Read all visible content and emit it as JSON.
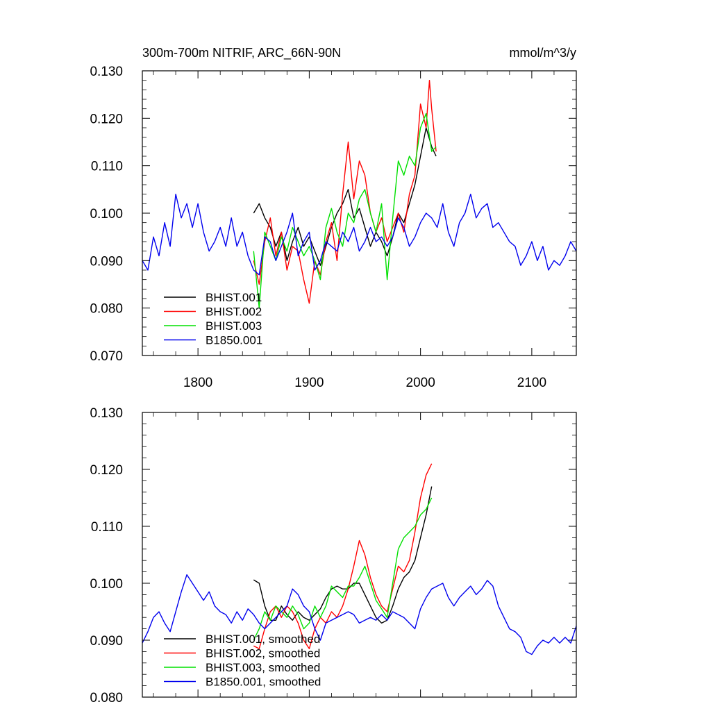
{
  "header": {
    "left_title": "300m-700m NITRIF, ARC_66N-90N",
    "right_title": "mmol/m^3/y"
  },
  "colors": {
    "BHIST.001": "#000000",
    "BHIST.002": "#ff0000",
    "BHIST.003": "#00e000",
    "B1850.001": "#0000ee"
  },
  "chart_data": [
    {
      "type": "line",
      "title": "300m-700m NITRIF, ARC_66N-90N",
      "units": "mmol/m^3/y",
      "xlim": [
        1750,
        2140
      ],
      "ylim": [
        0.07,
        0.13
      ],
      "x_ticks": [
        1800,
        1900,
        2000,
        2100
      ],
      "x_tick_labels": [
        "1800",
        "1900",
        "2000",
        "2100"
      ],
      "y_ticks": [
        0.07,
        0.08,
        0.09,
        0.1,
        0.11,
        0.12,
        0.13
      ],
      "y_tick_labels": [
        "0.070",
        "0.080",
        "0.090",
        "0.100",
        "0.110",
        "0.120",
        "0.130"
      ],
      "legend_position": "bottom-left",
      "series": [
        {
          "name": "BHIST.001",
          "x": [
            1850,
            1855,
            1860,
            1865,
            1870,
            1875,
            1880,
            1885,
            1890,
            1895,
            1900,
            1905,
            1910,
            1915,
            1920,
            1925,
            1930,
            1935,
            1940,
            1945,
            1950,
            1955,
            1960,
            1965,
            1970,
            1975,
            1980,
            1985,
            1990,
            1995,
            2000,
            2005,
            2010,
            2014
          ],
          "y": [
            0.1,
            0.102,
            0.099,
            0.097,
            0.093,
            0.096,
            0.09,
            0.094,
            0.097,
            0.093,
            0.095,
            0.092,
            0.089,
            0.093,
            0.097,
            0.1,
            0.102,
            0.105,
            0.099,
            0.101,
            0.097,
            0.093,
            0.096,
            0.094,
            0.091,
            0.095,
            0.1,
            0.098,
            0.102,
            0.106,
            0.112,
            0.118,
            0.114,
            0.112
          ]
        },
        {
          "name": "BHIST.002",
          "x": [
            1850,
            1855,
            1860,
            1865,
            1870,
            1875,
            1880,
            1885,
            1890,
            1895,
            1900,
            1905,
            1910,
            1915,
            1920,
            1925,
            1930,
            1935,
            1940,
            1945,
            1950,
            1955,
            1960,
            1965,
            1970,
            1975,
            1980,
            1985,
            1990,
            1995,
            2000,
            2005,
            2008,
            2010,
            2014
          ],
          "y": [
            0.09,
            0.085,
            0.094,
            0.099,
            0.091,
            0.096,
            0.088,
            0.093,
            0.092,
            0.086,
            0.081,
            0.09,
            0.087,
            0.094,
            0.098,
            0.09,
            0.104,
            0.115,
            0.103,
            0.111,
            0.108,
            0.1,
            0.096,
            0.099,
            0.094,
            0.097,
            0.1,
            0.096,
            0.104,
            0.108,
            0.123,
            0.118,
            0.128,
            0.122,
            0.113
          ]
        },
        {
          "name": "BHIST.003",
          "x": [
            1850,
            1855,
            1860,
            1865,
            1870,
            1875,
            1880,
            1885,
            1890,
            1895,
            1900,
            1905,
            1910,
            1915,
            1920,
            1925,
            1930,
            1935,
            1940,
            1945,
            1950,
            1955,
            1960,
            1965,
            1970,
            1975,
            1980,
            1985,
            1990,
            1995,
            2000,
            2005,
            2010,
            2014
          ],
          "y": [
            0.092,
            0.08,
            0.096,
            0.093,
            0.09,
            0.095,
            0.092,
            0.097,
            0.094,
            0.091,
            0.093,
            0.09,
            0.086,
            0.097,
            0.101,
            0.096,
            0.093,
            0.1,
            0.098,
            0.103,
            0.105,
            0.1,
            0.096,
            0.102,
            0.086,
            0.099,
            0.111,
            0.108,
            0.112,
            0.11,
            0.118,
            0.121,
            0.113,
            0.114
          ]
        },
        {
          "name": "B1850.001",
          "x": [
            1750,
            1755,
            1760,
            1765,
            1770,
            1775,
            1780,
            1785,
            1790,
            1795,
            1800,
            1805,
            1810,
            1815,
            1820,
            1825,
            1830,
            1835,
            1840,
            1845,
            1850,
            1855,
            1860,
            1865,
            1870,
            1875,
            1880,
            1885,
            1890,
            1895,
            1900,
            1905,
            1910,
            1915,
            1920,
            1925,
            1930,
            1935,
            1940,
            1945,
            1950,
            1955,
            1960,
            1965,
            1970,
            1975,
            1980,
            1985,
            1990,
            1995,
            2000,
            2005,
            2010,
            2015,
            2020,
            2025,
            2030,
            2035,
            2040,
            2045,
            2050,
            2055,
            2060,
            2065,
            2070,
            2075,
            2080,
            2085,
            2090,
            2095,
            2100,
            2105,
            2110,
            2115,
            2120,
            2125,
            2130,
            2135,
            2140
          ],
          "y": [
            0.09,
            0.088,
            0.095,
            0.091,
            0.098,
            0.093,
            0.104,
            0.099,
            0.102,
            0.097,
            0.102,
            0.096,
            0.092,
            0.094,
            0.097,
            0.093,
            0.099,
            0.093,
            0.096,
            0.091,
            0.088,
            0.087,
            0.095,
            0.094,
            0.09,
            0.093,
            0.096,
            0.1,
            0.091,
            0.094,
            0.096,
            0.088,
            0.09,
            0.094,
            0.093,
            0.092,
            0.096,
            0.094,
            0.097,
            0.092,
            0.094,
            0.097,
            0.094,
            0.095,
            0.093,
            0.095,
            0.099,
            0.097,
            0.093,
            0.095,
            0.098,
            0.1,
            0.099,
            0.097,
            0.102,
            0.096,
            0.093,
            0.098,
            0.1,
            0.104,
            0.099,
            0.101,
            0.102,
            0.097,
            0.098,
            0.096,
            0.094,
            0.093,
            0.089,
            0.091,
            0.094,
            0.09,
            0.093,
            0.088,
            0.09,
            0.089,
            0.091,
            0.094,
            0.092
          ]
        }
      ]
    },
    {
      "type": "line",
      "xlim": [
        1750,
        2140
      ],
      "ylim": [
        0.08,
        0.13
      ],
      "x_ticks": [
        1800,
        1900,
        2000,
        2100
      ],
      "y_ticks": [
        0.08,
        0.09,
        0.1,
        0.11,
        0.12,
        0.13
      ],
      "y_tick_labels": [
        "0.080",
        "0.090",
        "0.100",
        "0.110",
        "0.120",
        "0.130"
      ],
      "legend_position": "bottom-left",
      "series": [
        {
          "name": "BHIST.001, smoothed",
          "x": [
            1850,
            1855,
            1860,
            1865,
            1870,
            1875,
            1880,
            1885,
            1890,
            1895,
            1900,
            1905,
            1910,
            1915,
            1920,
            1925,
            1930,
            1935,
            1940,
            1945,
            1950,
            1955,
            1960,
            1965,
            1970,
            1975,
            1980,
            1985,
            1990,
            1995,
            2000,
            2005,
            2010
          ],
          "y": [
            0.1006,
            0.1,
            0.096,
            0.0935,
            0.0935,
            0.096,
            0.0945,
            0.0935,
            0.095,
            0.094,
            0.0935,
            0.0945,
            0.0955,
            0.0975,
            0.099,
            0.0995,
            0.099,
            0.099,
            0.1,
            0.1,
            0.098,
            0.096,
            0.094,
            0.093,
            0.0935,
            0.096,
            0.099,
            0.101,
            0.102,
            0.104,
            0.108,
            0.112,
            0.117
          ]
        },
        {
          "name": "BHIST.002, smoothed",
          "x": [
            1850,
            1855,
            1860,
            1865,
            1870,
            1875,
            1880,
            1885,
            1890,
            1895,
            1900,
            1905,
            1910,
            1915,
            1920,
            1925,
            1930,
            1935,
            1940,
            1945,
            1950,
            1955,
            1960,
            1965,
            1970,
            1975,
            1980,
            1985,
            1990,
            1995,
            2000,
            2005,
            2010
          ],
          "y": [
            0.089,
            0.0885,
            0.092,
            0.095,
            0.096,
            0.094,
            0.096,
            0.095,
            0.093,
            0.09,
            0.0885,
            0.092,
            0.094,
            0.093,
            0.095,
            0.094,
            0.096,
            0.099,
            0.103,
            0.1075,
            0.105,
            0.101,
            0.098,
            0.096,
            0.095,
            0.099,
            0.103,
            0.102,
            0.104,
            0.109,
            0.115,
            0.119,
            0.121
          ]
        },
        {
          "name": "BHIST.003, smoothed",
          "x": [
            1850,
            1855,
            1860,
            1865,
            1870,
            1875,
            1880,
            1885,
            1890,
            1895,
            1900,
            1905,
            1910,
            1915,
            1920,
            1925,
            1930,
            1935,
            1940,
            1945,
            1950,
            1955,
            1960,
            1965,
            1970,
            1975,
            1980,
            1985,
            1990,
            1995,
            2000,
            2005,
            2010
          ],
          "y": [
            0.09,
            0.092,
            0.095,
            0.0935,
            0.096,
            0.095,
            0.094,
            0.096,
            0.0945,
            0.092,
            0.093,
            0.096,
            0.094,
            0.096,
            0.0995,
            0.0985,
            0.0975,
            0.0995,
            0.0995,
            0.101,
            0.103,
            0.1,
            0.097,
            0.0955,
            0.094,
            0.1,
            0.106,
            0.108,
            0.109,
            0.11,
            0.112,
            0.113,
            0.115
          ]
        },
        {
          "name": "B1850.001, smoothed",
          "x": [
            1750,
            1755,
            1760,
            1765,
            1770,
            1775,
            1780,
            1785,
            1790,
            1795,
            1800,
            1805,
            1810,
            1815,
            1820,
            1825,
            1830,
            1835,
            1840,
            1845,
            1850,
            1855,
            1860,
            1865,
            1870,
            1875,
            1880,
            1885,
            1890,
            1895,
            1900,
            1905,
            1910,
            1915,
            1920,
            1925,
            1930,
            1935,
            1940,
            1945,
            1950,
            1955,
            1960,
            1965,
            1970,
            1975,
            1980,
            1985,
            1990,
            1995,
            2000,
            2005,
            2010,
            2015,
            2020,
            2025,
            2030,
            2035,
            2040,
            2045,
            2050,
            2055,
            2060,
            2065,
            2070,
            2075,
            2080,
            2085,
            2090,
            2095,
            2100,
            2105,
            2110,
            2115,
            2120,
            2125,
            2130,
            2135,
            2140
          ],
          "y": [
            0.0895,
            0.0915,
            0.094,
            0.095,
            0.093,
            0.0915,
            0.095,
            0.0985,
            0.1015,
            0.1,
            0.0985,
            0.097,
            0.0985,
            0.096,
            0.095,
            0.0945,
            0.093,
            0.095,
            0.0935,
            0.0955,
            0.0945,
            0.093,
            0.092,
            0.093,
            0.094,
            0.095,
            0.096,
            0.099,
            0.098,
            0.096,
            0.095,
            0.092,
            0.09,
            0.093,
            0.0935,
            0.094,
            0.0945,
            0.095,
            0.0945,
            0.093,
            0.0935,
            0.094,
            0.0935,
            0.0945,
            0.0935,
            0.095,
            0.0945,
            0.094,
            0.093,
            0.092,
            0.0955,
            0.0975,
            0.099,
            0.0995,
            0.1,
            0.0975,
            0.096,
            0.0975,
            0.0985,
            0.0995,
            0.098,
            0.099,
            0.1005,
            0.0995,
            0.096,
            0.094,
            0.092,
            0.0915,
            0.0905,
            0.088,
            0.0875,
            0.089,
            0.09,
            0.0895,
            0.0905,
            0.0895,
            0.0905,
            0.0895,
            0.0925
          ]
        }
      ]
    }
  ]
}
